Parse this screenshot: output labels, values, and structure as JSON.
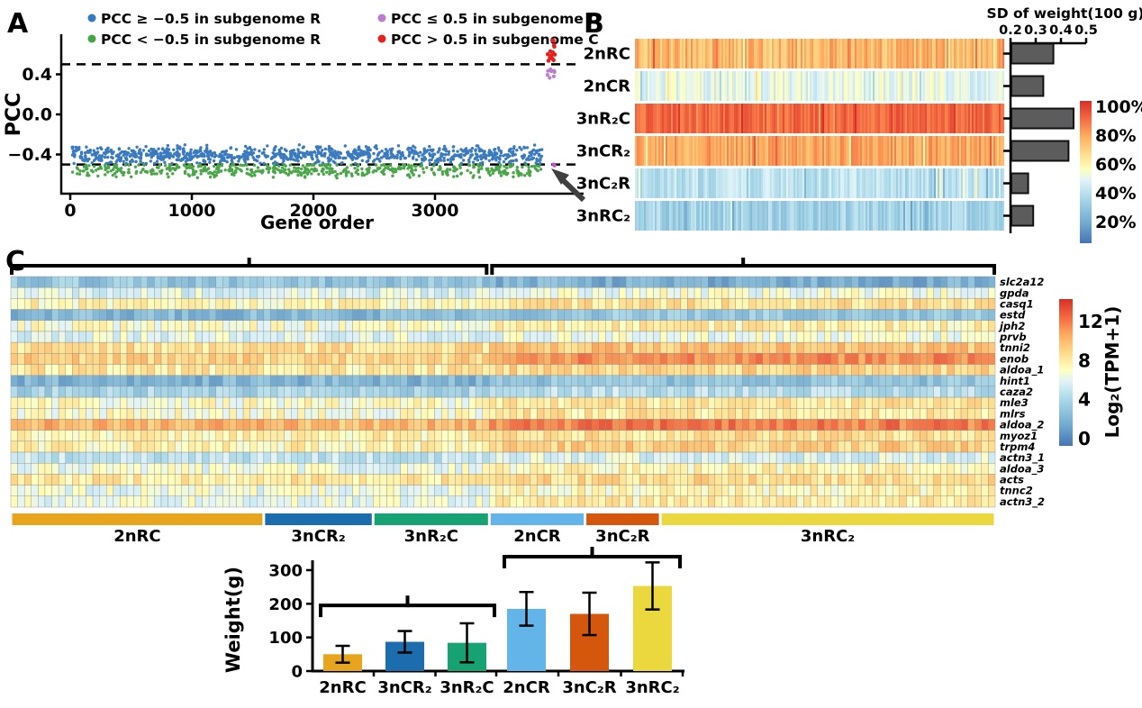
{
  "panels": {
    "a": "A",
    "b": "B",
    "c": "C"
  },
  "chart_data": [
    {
      "id": "pcc_scatter",
      "type": "scatter",
      "xlabel": "Gene order",
      "ylabel": "PCC",
      "xticks": [
        0,
        1000,
        2000,
        3000
      ],
      "yticks": [
        0.4,
        0.0,
        -0.4
      ],
      "xlim": [
        0,
        4100
      ],
      "ylim": [
        -0.75,
        0.78
      ],
      "dashed_pcc": [
        0.5,
        -0.5
      ],
      "legend": [
        {
          "label": "PCC ≥ −0.5 in subgenome R",
          "color": "#3579c0"
        },
        {
          "label": "PCC < −0.5 in subgenome R",
          "color": "#47a447"
        },
        {
          "label": "PCC ≤ 0.5 in subgenome C",
          "color": "#bb7fd0"
        },
        {
          "label": "PCC > 0.5 in subgenome C",
          "color": "#e8201d"
        }
      ],
      "series": [
        {
          "name": "pcc-ge-minus05-subgenome-R",
          "color": "#3a7abf",
          "n_points": 950,
          "x_range": [
            10,
            3880
          ],
          "pcc_range": [
            -0.49,
            -0.285
          ],
          "pcc_center": -0.405,
          "pcc_spread": 0.055,
          "r": 1.7
        },
        {
          "name": "pcc-lt-minus05-subgenome-R",
          "color": "#4aa649",
          "n_points": 520,
          "x_range": [
            10,
            3880
          ],
          "pcc_range": [
            -0.655,
            -0.505
          ],
          "pcc_center": -0.555,
          "pcc_spread": 0.045,
          "r": 1.7
        },
        {
          "name": "pcc-gt-05-subgenome-C",
          "color": "#e8201d",
          "n_points": 14,
          "x_range": [
            3920,
            3985
          ],
          "pcc_range": [
            0.52,
            0.74
          ],
          "pcc_center": 0.62,
          "pcc_spread": 0.07,
          "r": 2.3
        },
        {
          "name": "pcc-le-05-subgenome-C",
          "color": "#bb7fd0",
          "n_points": 9,
          "x_range": [
            3925,
            3990
          ],
          "pcc_range": [
            0.365,
            0.5
          ],
          "pcc_center": 0.43,
          "pcc_spread": 0.05,
          "r": 2.1
        },
        {
          "name": "pcc-le-05-subgenome-C-outlier",
          "color": "#bb55c8",
          "n_points": 2,
          "x_range": [
            3970,
            3995
          ],
          "pcc_range": [
            -0.515,
            -0.49
          ],
          "pcc_center": -0.5,
          "pcc_spread": 0.012,
          "r": 2.1
        }
      ],
      "arrow_annotation": "arrow pointing at purple outlier near PCC = −0.5 at right end"
    },
    {
      "id": "sample_heatmap_sd",
      "type": "heatmap",
      "rows": [
        "2nRC",
        "2nCR",
        "3nR₂C",
        "3nCR₂",
        "3nC₂R",
        "3nRC₂"
      ],
      "row_mean_percent": [
        72,
        46,
        88,
        76,
        36,
        30
      ],
      "row_jitter_percent": [
        9,
        9,
        6,
        8,
        8,
        8
      ],
      "n_cols": 205,
      "colorbar": {
        "labels": [
          "100%",
          "80%",
          "60%",
          "40%",
          "20%"
        ],
        "range_percent": [
          0,
          100
        ]
      },
      "sd_bars": {
        "title": "SD of weight(100 g)",
        "ticks": [
          0.2,
          0.3,
          0.4,
          0.5
        ],
        "values": [
          0.37,
          0.33,
          0.45,
          0.43,
          0.27,
          0.29
        ],
        "color": "#5c5c5c"
      }
    },
    {
      "id": "gene_expression_heatmap",
      "type": "heatmap",
      "genes": [
        "slc2a12",
        "gpda",
        "casq1",
        "estd",
        "jph2",
        "prvb",
        "tnni2",
        "enob",
        "aldoa_1",
        "hint1",
        "caza2",
        "mle3",
        "mlrs",
        "aldoa_2",
        "myoz1",
        "trpm4",
        "actn3_1",
        "aldoa_3",
        "acts",
        "tnnc2",
        "actn3_2"
      ],
      "groups": [
        {
          "label": "2nRC",
          "color": "#e6a51c",
          "n_cols": 37
        },
        {
          "label": "3nCR₂",
          "color": "#1b6dad",
          "n_cols": 16
        },
        {
          "label": "3nR₂C",
          "color": "#17a273",
          "n_cols": 17
        },
        {
          "label": "2nCR",
          "color": "#63b5e9",
          "n_cols": 14
        },
        {
          "label": "3nC₂R",
          "color": "#d5570e",
          "n_cols": 11
        },
        {
          "label": "3nRC₂",
          "color": "#ebd83e",
          "n_cols": 49
        }
      ],
      "values_by_gene_group": [
        [
          3.6,
          3.4,
          3.3,
          2.4,
          2.2,
          2.3
        ],
        [
          6.0,
          6.1,
          6.0,
          6.8,
          6.8,
          6.8
        ],
        [
          7.8,
          7.7,
          7.8,
          8.5,
          8.5,
          8.5
        ],
        [
          2.8,
          2.9,
          2.8,
          3.6,
          3.6,
          3.6
        ],
        [
          7.2,
          7.2,
          7.2,
          8.0,
          8.0,
          8.0
        ],
        [
          6.2,
          6.2,
          6.2,
          6.6,
          6.6,
          6.6
        ],
        [
          8.6,
          8.5,
          8.6,
          9.5,
          9.7,
          9.6
        ],
        [
          9.2,
          8.9,
          9.0,
          11.2,
          11.4,
          11.3
        ],
        [
          8.2,
          8.1,
          8.2,
          9.0,
          9.0,
          9.0
        ],
        [
          2.6,
          2.7,
          2.6,
          3.4,
          3.4,
          3.4
        ],
        [
          4.3,
          4.3,
          4.3,
          5.0,
          5.0,
          5.0
        ],
        [
          7.2,
          7.2,
          7.2,
          8.3,
          8.3,
          8.3
        ],
        [
          7.2,
          7.2,
          7.2,
          8.3,
          8.3,
          8.3
        ],
        [
          10.2,
          9.9,
          10.0,
          11.6,
          11.9,
          11.8
        ],
        [
          7.8,
          7.8,
          7.8,
          8.6,
          8.6,
          8.6
        ],
        [
          7.8,
          7.8,
          7.8,
          9.2,
          9.4,
          9.2
        ],
        [
          5.2,
          5.2,
          5.2,
          6.0,
          6.0,
          6.0
        ],
        [
          6.6,
          6.6,
          6.6,
          7.6,
          7.6,
          7.6
        ],
        [
          8.2,
          8.2,
          8.2,
          8.8,
          8.8,
          8.8
        ],
        [
          6.6,
          6.6,
          6.6,
          7.6,
          7.6,
          7.6
        ],
        [
          6.6,
          6.6,
          6.6,
          8.0,
          7.9,
          8.0
        ]
      ],
      "cell_jitter": 1.15,
      "colorbar": {
        "title": "Log₂(TPM+1)",
        "ticks": [
          0,
          4,
          8,
          12
        ],
        "range": [
          0,
          14.3
        ]
      }
    },
    {
      "id": "weight_bars",
      "type": "bar",
      "ylabel": "Weight(g)",
      "categories": [
        "2nRC",
        "3nCR₂",
        "3nR₂C",
        "2nCR",
        "3nC₂R",
        "3nRC₂"
      ],
      "values": [
        50,
        87,
        84,
        185,
        170,
        253
      ],
      "errors": [
        25,
        32,
        58,
        50,
        63,
        70
      ],
      "colors": [
        "#e6a51c",
        "#1b6dad",
        "#17a273",
        "#63b5e9",
        "#d5570e",
        "#ebd83e"
      ],
      "yticks": [
        0,
        100,
        200,
        300
      ],
      "ylim": [
        0,
        340
      ],
      "brackets": [
        {
          "from": 0,
          "to": 2,
          "value": 195
        },
        {
          "from": 3,
          "to": 5,
          "value": 340
        }
      ]
    }
  ]
}
